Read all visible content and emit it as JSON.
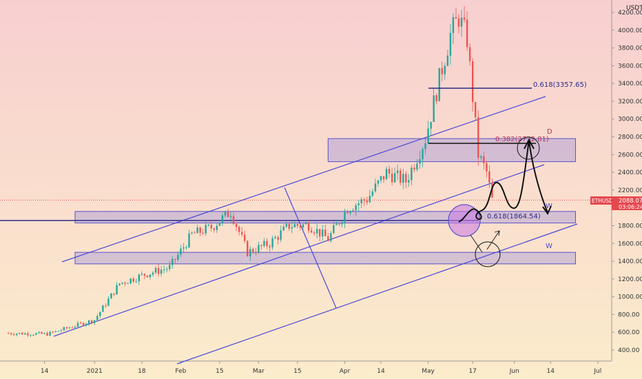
{
  "chart_data": {
    "type": "candlestick",
    "symbol": "ETHUSDT",
    "currency": "USDT",
    "last_price": "2088.07",
    "countdown": "03:06:24",
    "ylim": [
      300,
      4300
    ],
    "y_ticks": [
      400,
      600,
      800,
      1000,
      1200,
      1400,
      1600,
      1800,
      2000,
      2200,
      2400,
      2600,
      2800,
      3000,
      3200,
      3400,
      3600,
      3800,
      4000,
      4200
    ],
    "y_tick_labels": [
      "400.00",
      "600.00",
      "800.00",
      "1000.00",
      "1200.00",
      "1400.00",
      "1600.00",
      "1800.00",
      "2000.00",
      "2200.00",
      "2400.00",
      "2600.00",
      "2800.00",
      "3000.00",
      "3200.00",
      "3400.00",
      "3600.00",
      "3800.00",
      "4000.00",
      "4200.00"
    ],
    "x_tick_labels": [
      "14",
      "2021",
      "18",
      "Feb",
      "15",
      "Mar",
      "15",
      "Apr",
      "14",
      "May",
      "17",
      "Jun",
      "14",
      "Jul"
    ],
    "x_ticks_dates": [
      "2020-12-14",
      "2021-01-01",
      "2021-01-18",
      "2021-02-01",
      "2021-02-15",
      "2021-03-01",
      "2021-03-15",
      "2021-04-01",
      "2021-04-14",
      "2021-05-01",
      "2021-05-17",
      "2021-06-01",
      "2021-06-14",
      "2021-07-01"
    ],
    "x_start": "2020-11-28",
    "x_end": "2021-07-06",
    "series": [
      {
        "x": [
          "2020-12-01",
          "2020-12-15",
          "2021-01-01",
          "2021-01-10",
          "2021-01-19",
          "2021-01-28",
          "2021-02-05",
          "2021-02-12",
          "2021-02-19",
          "2021-02-25",
          "2021-03-05",
          "2021-03-12",
          "2021-03-19",
          "2021-03-26",
          "2021-04-02",
          "2021-04-09",
          "2021-04-16",
          "2021-04-23",
          "2021-04-30",
          "2021-05-05",
          "2021-05-09",
          "2021-05-12",
          "2021-05-15",
          "2021-05-19",
          "2021-05-22",
          "2021-05-24"
        ],
        "y": [
          590,
          580,
          740,
          1150,
          1250,
          1330,
          1700,
          1780,
          1960,
          1500,
          1600,
          1800,
          1810,
          1650,
          2000,
          2100,
          2400,
          2300,
          2780,
          3450,
          3950,
          4150,
          3900,
          2600,
          2400,
          2088
        ]
      }
    ],
    "annotations": {
      "fib_upper": "0.618(3357.65)",
      "fib_mid": "0.382(2732.81)",
      "fib_lower": "0.618(1864.54)",
      "label_d": "D",
      "label_w1": "W",
      "label_w2": "W"
    },
    "zones": [
      {
        "date_from": "2021-03-26",
        "date_to": "2021-06-23",
        "price_from": 2520,
        "price_to": 2780
      },
      {
        "date_from": "2020-12-25",
        "date_to": "2021-06-23",
        "price_from": 1830,
        "price_to": 1960
      },
      {
        "date_from": "2020-12-25",
        "date_to": "2021-06-23",
        "price_from": 1370,
        "price_to": 1500
      }
    ],
    "colors": {
      "bull": "#26a69a",
      "bear": "#ef5350",
      "channel": "#4a47d6",
      "zone_fill": "rgba(150,140,220,0.38)",
      "zone_stroke": "#5a52c8",
      "fib_line": "#2b2a8a",
      "fib_text_upper": "#2b2a8a",
      "fib_text_mid": "#b2345a",
      "drawing": "#111111",
      "circle_fill": "rgba(200,120,230,0.55)",
      "price_badge": "#e5484d",
      "bg_top": "#f8cfd0",
      "bg_bottom": "#fbeccb"
    }
  }
}
